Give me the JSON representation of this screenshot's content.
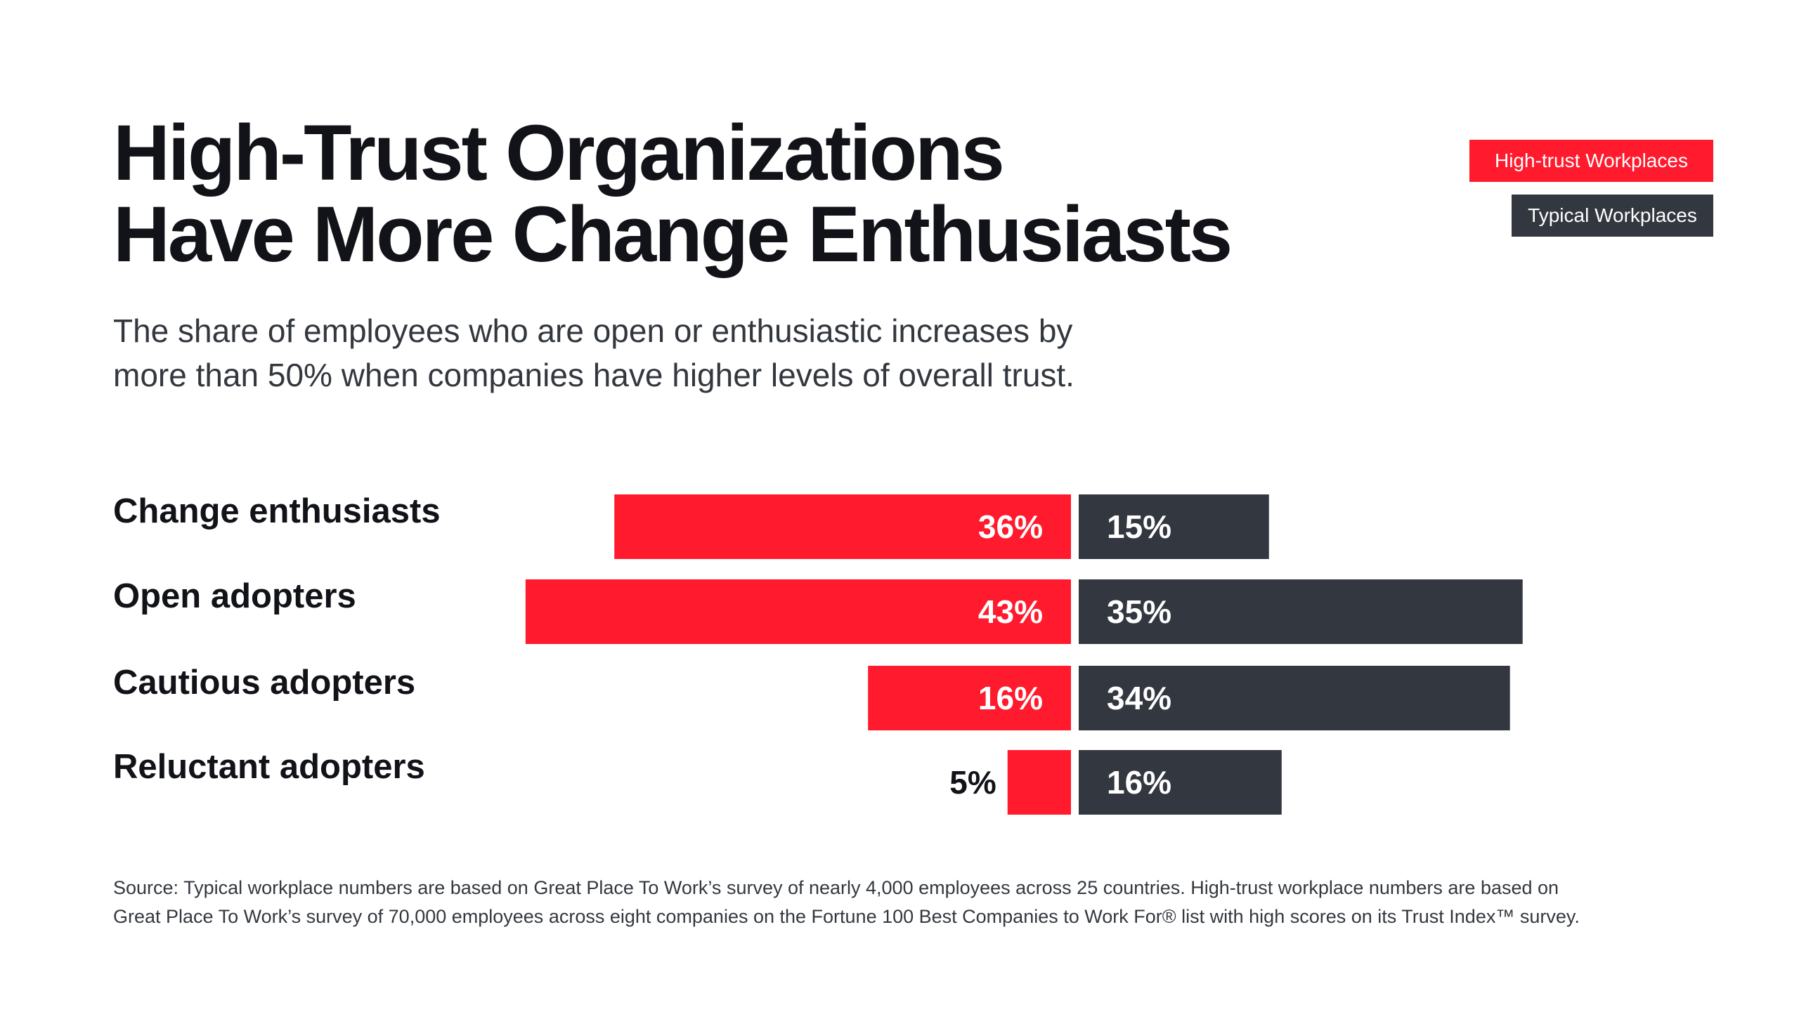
{
  "title_lines": [
    "High-Trust Organizations",
    "Have More Change Enthusiasts"
  ],
  "subtitle_lines": [
    "The share of employees who are open or enthusiastic increases by",
    "more than 50% when companies have higher levels of overall trust."
  ],
  "legend": [
    {
      "label": "High-trust Workplaces",
      "color": "#ff1a2d"
    },
    {
      "label": "Typical Workplaces",
      "color": "#333840"
    }
  ],
  "chart_data": {
    "type": "bar",
    "orientation": "horizontal-diverging",
    "categories": [
      "Change enthusiasts",
      "Open adopters",
      "Cautious adopters",
      "Reluctant adopters"
    ],
    "series": [
      {
        "name": "High-trust Workplaces",
        "values": [
          36,
          43,
          16,
          5
        ],
        "labels": [
          "36%",
          "43%",
          "16%",
          "5%"
        ],
        "color": "#ff1a2d"
      },
      {
        "name": "Typical Workplaces",
        "values": [
          15,
          35,
          34,
          16
        ],
        "labels": [
          "15%",
          "35%",
          "34%",
          "16%"
        ],
        "color": "#333840"
      }
    ],
    "unit": "%",
    "grid": false,
    "legend_position": "top-right"
  },
  "source_lines": [
    "Source: Typical workplace numbers are based on Great Place To Work’s survey of nearly 4,000 employees across 25 countries. High-trust workplace numbers are based on",
    "Great Place To Work’s survey of 70,000 employees across eight companies on the Fortune 100 Best Companies to Work For® list with high scores on its Trust Index™ survey."
  ]
}
